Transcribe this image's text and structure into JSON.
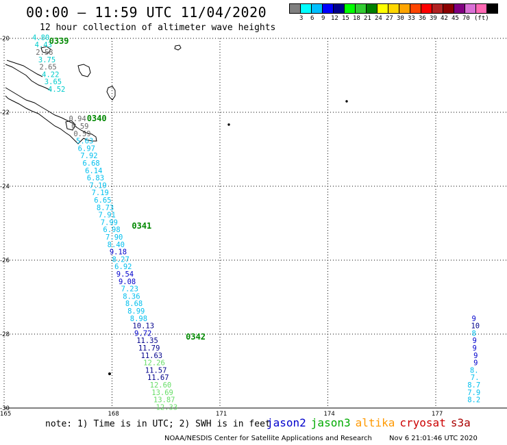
{
  "header": {
    "title": "00:00 – 11:59 UTC 11/04/2020",
    "subtitle": "12 hour collection of altimeter wave heights"
  },
  "legend": {
    "unit": "(ft)",
    "colors": [
      "#808080",
      "#00ffff",
      "#00bfff",
      "#0000ff",
      "#00008b",
      "#00ff00",
      "#32cd32",
      "#008000",
      "#ffff00",
      "#ffd700",
      "#ffa500",
      "#ff4500",
      "#ff0000",
      "#b22222",
      "#8b0000",
      "#800080",
      "#da70d6",
      "#ff69b4",
      "#000000"
    ],
    "labels": [
      "3",
      "6",
      "9",
      "12",
      "15",
      "18",
      "21",
      "24",
      "27",
      "30",
      "33",
      "36",
      "39",
      "42",
      "45",
      "70"
    ]
  },
  "map": {
    "lon_ticks": [
      "165",
      "168",
      "171",
      "174",
      "177"
    ],
    "lat_ticks": [
      "-20",
      "-22",
      "-24",
      "-26",
      "-28",
      "-30"
    ],
    "lon_range": [
      165,
      178.5
    ],
    "lat_range": [
      -30,
      -20
    ]
  },
  "passes": [
    {
      "label": "0339",
      "lon": 166.25,
      "lat": -20.07
    },
    {
      "label": "0340",
      "lon": 167.3,
      "lat": -22.17
    },
    {
      "label": "0341",
      "lon": 168.55,
      "lat": -25.07
    },
    {
      "label": "0342",
      "lon": 170.05,
      "lat": -28.07
    }
  ],
  "wave_heights": [
    {
      "v": "4.80",
      "lon": 165.78,
      "lat": -19.97,
      "c": "#00cccc"
    },
    {
      "v": "4.43",
      "lon": 165.85,
      "lat": -20.17,
      "c": "#00cccc"
    },
    {
      "v": "2.58",
      "lon": 165.88,
      "lat": -20.37,
      "c": "#666666"
    },
    {
      "v": "3.75",
      "lon": 165.95,
      "lat": -20.57,
      "c": "#00cccc"
    },
    {
      "v": "2.65",
      "lon": 165.98,
      "lat": -20.77,
      "c": "#666666"
    },
    {
      "v": "4.22",
      "lon": 166.05,
      "lat": -20.97,
      "c": "#00cccc"
    },
    {
      "v": "3.65",
      "lon": 166.12,
      "lat": -21.17,
      "c": "#00cccc"
    },
    {
      "v": "4.52",
      "lon": 166.22,
      "lat": -21.37,
      "c": "#00cccc"
    },
    {
      "v": "0.94",
      "lon": 166.8,
      "lat": -22.17,
      "c": "#666666"
    },
    {
      "v": "0.59",
      "lon": 166.87,
      "lat": -22.37,
      "c": "#666666"
    },
    {
      "v": "0.59",
      "lon": 166.93,
      "lat": -22.57,
      "c": "#666666"
    },
    {
      "v": "5.63",
      "lon": 167.0,
      "lat": -22.77,
      "c": "#00bfee"
    },
    {
      "v": "6.97",
      "lon": 167.05,
      "lat": -22.97,
      "c": "#00bfee"
    },
    {
      "v": "7.92",
      "lon": 167.12,
      "lat": -23.17,
      "c": "#00bfee"
    },
    {
      "v": "6.68",
      "lon": 167.18,
      "lat": -23.37,
      "c": "#00bfee"
    },
    {
      "v": "6.14",
      "lon": 167.25,
      "lat": -23.57,
      "c": "#00bfee"
    },
    {
      "v": "6.83",
      "lon": 167.3,
      "lat": -23.77,
      "c": "#00bfee"
    },
    {
      "v": "7.19",
      "lon": 167.37,
      "lat": -23.97,
      "c": "#00bfee"
    },
    {
      "v": "7.19",
      "lon": 167.43,
      "lat": -24.17,
      "c": "#00bfee"
    },
    {
      "v": "6.65",
      "lon": 167.5,
      "lat": -24.37,
      "c": "#00bfee"
    },
    {
      "v": "8.73",
      "lon": 167.57,
      "lat": -24.57,
      "c": "#00bfee"
    },
    {
      "v": "7.91",
      "lon": 167.62,
      "lat": -24.77,
      "c": "#00bfee"
    },
    {
      "v": "7.99",
      "lon": 167.68,
      "lat": -24.97,
      "c": "#00bfee"
    },
    {
      "v": "6.98",
      "lon": 167.75,
      "lat": -25.17,
      "c": "#00bfee"
    },
    {
      "v": "7.90",
      "lon": 167.82,
      "lat": -25.37,
      "c": "#00bfee"
    },
    {
      "v": "8.40",
      "lon": 167.87,
      "lat": -25.57,
      "c": "#00bfee"
    },
    {
      "v": "9.18",
      "lon": 167.93,
      "lat": -25.77,
      "c": "#0000cc"
    },
    {
      "v": "8.27",
      "lon": 168.0,
      "lat": -25.97,
      "c": "#00bfee"
    },
    {
      "v": "6.92",
      "lon": 168.07,
      "lat": -26.17,
      "c": "#00bfee"
    },
    {
      "v": "9.54",
      "lon": 168.12,
      "lat": -26.37,
      "c": "#0000cc"
    },
    {
      "v": "9.08",
      "lon": 168.18,
      "lat": -26.57,
      "c": "#0000cc"
    },
    {
      "v": "7.23",
      "lon": 168.25,
      "lat": -26.77,
      "c": "#00bfee"
    },
    {
      "v": "8.36",
      "lon": 168.3,
      "lat": -26.97,
      "c": "#00bfee"
    },
    {
      "v": "8.68",
      "lon": 168.37,
      "lat": -27.17,
      "c": "#00bfee"
    },
    {
      "v": "8.99",
      "lon": 168.43,
      "lat": -27.37,
      "c": "#00bfee"
    },
    {
      "v": "8.98",
      "lon": 168.5,
      "lat": -27.57,
      "c": "#00bfee"
    },
    {
      "v": "10.13",
      "lon": 168.57,
      "lat": -27.77,
      "c": "#00008b"
    },
    {
      "v": "9.72",
      "lon": 168.62,
      "lat": -27.97,
      "c": "#0000cc"
    },
    {
      "v": "11.35",
      "lon": 168.68,
      "lat": -28.17,
      "c": "#00008b"
    },
    {
      "v": "11.79",
      "lon": 168.73,
      "lat": -28.37,
      "c": "#00008b"
    },
    {
      "v": "11.63",
      "lon": 168.8,
      "lat": -28.57,
      "c": "#00008b"
    },
    {
      "v": "12.26",
      "lon": 168.87,
      "lat": -28.77,
      "c": "#66dd66"
    },
    {
      "v": "11.57",
      "lon": 168.92,
      "lat": -28.97,
      "c": "#00008b"
    },
    {
      "v": "11.67",
      "lon": 168.98,
      "lat": -29.17,
      "c": "#00008b"
    },
    {
      "v": "12.60",
      "lon": 169.05,
      "lat": -29.37,
      "c": "#66dd66"
    },
    {
      "v": "13.69",
      "lon": 169.1,
      "lat": -29.57,
      "c": "#66dd66"
    },
    {
      "v": "13.87",
      "lon": 169.15,
      "lat": -29.77,
      "c": "#66dd66"
    },
    {
      "v": "12.33",
      "lon": 169.22,
      "lat": -29.97,
      "c": "#66dd66"
    },
    {
      "v": "9",
      "lon": 178.0,
      "lat": -27.57,
      "c": "#0000cc"
    },
    {
      "v": "10",
      "lon": 177.98,
      "lat": -27.77,
      "c": "#00008b"
    },
    {
      "v": "8",
      "lon": 178.0,
      "lat": -27.97,
      "c": "#00bfee"
    },
    {
      "v": "9",
      "lon": 178.02,
      "lat": -28.17,
      "c": "#0000cc"
    },
    {
      "v": "9",
      "lon": 178.02,
      "lat": -28.37,
      "c": "#0000cc"
    },
    {
      "v": "9",
      "lon": 178.05,
      "lat": -28.57,
      "c": "#0000cc"
    },
    {
      "v": "9",
      "lon": 178.05,
      "lat": -28.77,
      "c": "#0000cc"
    },
    {
      "v": "8.",
      "lon": 177.95,
      "lat": -28.97,
      "c": "#00bfee"
    },
    {
      "v": "7.",
      "lon": 177.97,
      "lat": -29.17,
      "c": "#00bfee"
    },
    {
      "v": "8.7",
      "lon": 177.88,
      "lat": -29.37,
      "c": "#00bfee"
    },
    {
      "v": "7.9",
      "lon": 177.88,
      "lat": -29.57,
      "c": "#00bfee"
    },
    {
      "v": "8.2",
      "lon": 177.88,
      "lat": -29.77,
      "c": "#00bfee"
    }
  ],
  "note": "note: 1) Time is in UTC; 2) SWH is in feet",
  "satellites": [
    {
      "name": "jason2",
      "color": "#0000cc"
    },
    {
      "name": "jason3",
      "color": "#00aa00"
    },
    {
      "name": "altika",
      "color": "#ff9900"
    },
    {
      "name": "cryosat",
      "color": "#cc0000"
    },
    {
      "name": "s3a",
      "color": "#aa0000"
    }
  ],
  "footer": {
    "credit": "NOAA/NESDIS Center for Satellite Applications and Research",
    "timestamp": "Nov  6 21:01:46 UTC 2020"
  }
}
